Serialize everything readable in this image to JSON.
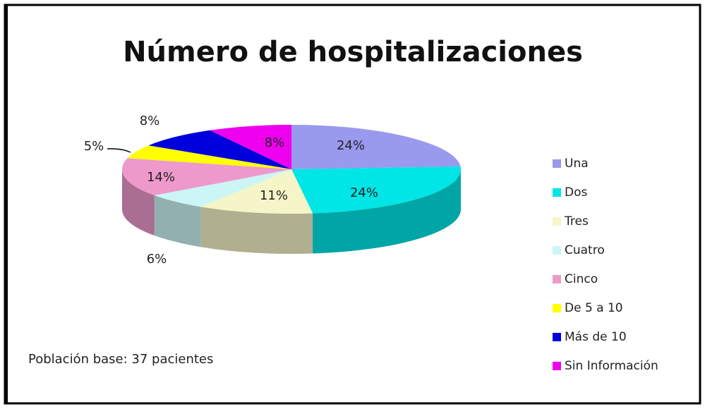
{
  "chart_data": {
    "type": "pie",
    "title": "Número de hospitalizaciones",
    "categories": [
      "Una",
      "Dos",
      "Tres",
      "Cuatro",
      "Cinco",
      "De 5 a 10",
      "Más de 10",
      "Sin Información"
    ],
    "values": [
      24,
      24,
      11,
      6,
      14,
      5,
      8,
      8
    ],
    "value_labels": [
      "24%",
      "24%",
      "11%",
      "6%",
      "14%",
      "5%",
      "8%",
      "8%"
    ],
    "colors": [
      "#9999ee",
      "#00e5e5",
      "#f5f5c8",
      "#ccf5f5",
      "#ee99cc",
      "#ffff00",
      "#0000dd",
      "#ee00ee"
    ],
    "legend": "right",
    "annotation": "Población base: 37 pacientes"
  }
}
